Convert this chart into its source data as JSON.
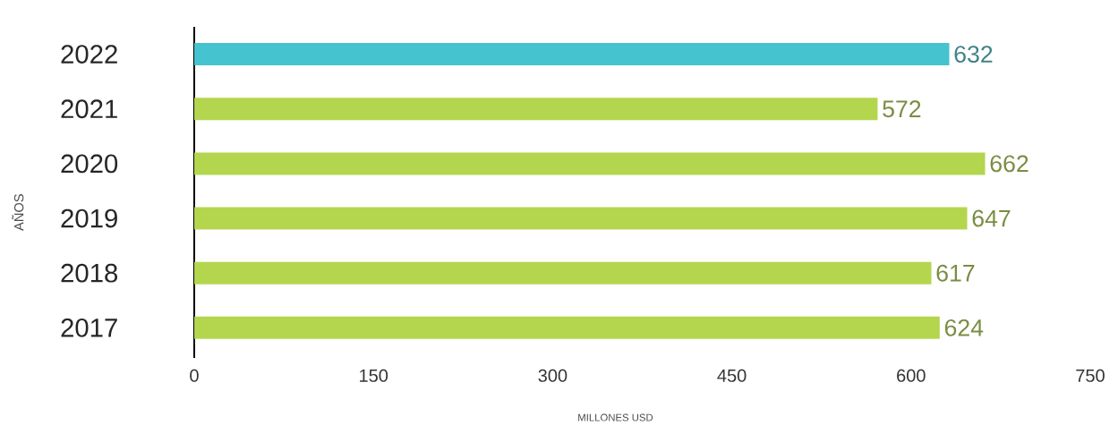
{
  "chart_data": {
    "type": "bar",
    "orientation": "horizontal",
    "xlabel": "MILLONES USD",
    "ylabel": "AÑOS",
    "categories": [
      "2022",
      "2021",
      "2020",
      "2019",
      "2018",
      "2017"
    ],
    "values": [
      632,
      572,
      662,
      647,
      617,
      624
    ],
    "colors": [
      "#45c3cf",
      "#b3d64e",
      "#b3d64e",
      "#b3d64e",
      "#b3d64e",
      "#b3d64e"
    ],
    "xlim": [
      0,
      750
    ],
    "xticks": [
      0,
      150,
      300,
      450,
      600,
      750
    ],
    "data_labels": true,
    "grid": false
  }
}
